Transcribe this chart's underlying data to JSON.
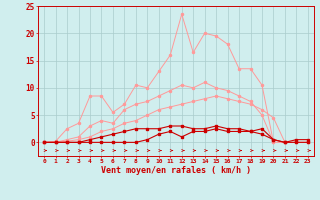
{
  "x": [
    0,
    1,
    2,
    3,
    4,
    5,
    6,
    7,
    8,
    9,
    10,
    11,
    12,
    13,
    14,
    15,
    16,
    17,
    18,
    19,
    20,
    21,
    22,
    23
  ],
  "series1": [
    0.0,
    0.2,
    2.5,
    3.5,
    8.5,
    8.5,
    5.5,
    7.0,
    10.5,
    10.0,
    13.0,
    16.0,
    23.5,
    16.5,
    20.0,
    19.5,
    18.0,
    13.5,
    13.5,
    10.5,
    0.0,
    0.0,
    0.0,
    0.0
  ],
  "series2": [
    0.0,
    0.0,
    0.5,
    1.0,
    3.0,
    4.0,
    3.5,
    6.0,
    7.0,
    7.5,
    8.5,
    9.5,
    10.5,
    10.0,
    11.0,
    10.0,
    9.5,
    8.5,
    7.5,
    5.0,
    0.0,
    0.0,
    0.0,
    0.0
  ],
  "series3": [
    0.0,
    0.0,
    0.2,
    0.5,
    1.0,
    2.0,
    2.5,
    3.5,
    4.0,
    5.0,
    6.0,
    6.5,
    7.0,
    7.5,
    8.0,
    8.5,
    8.0,
    7.5,
    7.0,
    6.0,
    4.5,
    0.0,
    0.0,
    0.0
  ],
  "series4": [
    0.0,
    0.0,
    0.0,
    0.0,
    0.5,
    1.0,
    1.5,
    2.0,
    2.5,
    2.5,
    2.5,
    3.0,
    3.0,
    2.5,
    2.5,
    3.0,
    2.5,
    2.5,
    2.0,
    1.5,
    0.5,
    0.0,
    0.5,
    0.5
  ],
  "series5": [
    0.0,
    0.0,
    0.0,
    0.0,
    0.0,
    0.0,
    0.0,
    0.0,
    0.0,
    0.5,
    1.5,
    2.0,
    1.0,
    2.0,
    2.0,
    2.5,
    2.0,
    2.0,
    2.0,
    2.5,
    0.5,
    0.0,
    0.0,
    0.0
  ],
  "color_light": "#FF9999",
  "color_dark": "#CC0000",
  "bg_color": "#D0EEEE",
  "grid_color": "#AACCCC",
  "xlabel": "Vent moyen/en rafales ( km/h )",
  "ylim": [
    0,
    25
  ],
  "xlim": [
    -0.5,
    23.5
  ],
  "yticks": [
    0,
    5,
    10,
    15,
    20,
    25
  ],
  "xticks": [
    0,
    1,
    2,
    3,
    4,
    5,
    6,
    7,
    8,
    9,
    10,
    11,
    12,
    13,
    14,
    15,
    16,
    17,
    18,
    19,
    20,
    21,
    22,
    23
  ]
}
